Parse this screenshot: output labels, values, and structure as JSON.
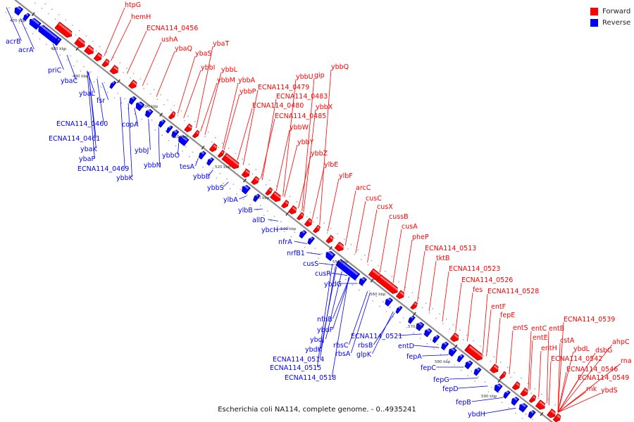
{
  "legend": [
    {
      "label": "Forward",
      "color": "#ff0000"
    },
    {
      "label": "Reverse",
      "color": "#0000ff"
    }
  ],
  "caption": "Escherichia coli NA114, complete genome. - 0..4935241",
  "colors": {
    "forward": "#ff0000",
    "reverse": "#0000ff",
    "axis": "#8c8c8c"
  },
  "ticks": [
    "470 kbp",
    "480 kbp",
    "490 kbp",
    "500 kbp",
    "510 kbp",
    "520 kbp",
    "530 kbp",
    "540 kbp",
    "550 kbp",
    "560 kbp",
    "570 kbp",
    "580 kbp",
    "590 kbp"
  ],
  "forward_labels": [
    "htpG",
    "hemH",
    "ECNA114_0456",
    "ushA",
    "ybaT",
    "ybaQ",
    "ybaS",
    "ybbI",
    "ybbL",
    "ybbM",
    "ybbA",
    "ybbP",
    "ECNA114_0479",
    "ybbU",
    "gip",
    "ybbQ",
    "ECNA114_0483",
    "ECNA114_0480",
    "ybbX",
    "ECNA114_0485",
    "ybbW",
    "ybbY",
    "ybbZ",
    "ylbE",
    "ylbF",
    "arcC",
    "cusC",
    "cusX",
    "cussB",
    "cusA",
    "pheP",
    "ECNA114_0513",
    "tktB",
    "ECNA114_0523",
    "ECNA114_0526",
    "fes",
    "ECNA114_0528",
    "entF",
    "fepE",
    "ECNA114_0539",
    "entS",
    "entC",
    "entB",
    "entE",
    "cstA",
    "entH",
    "ahpC",
    "ybdL",
    "dsbG",
    "ECNA114_0542",
    "rna",
    "ECNA114_0546",
    "ECNA114_0549",
    "rnk",
    "ybdS"
  ],
  "reverse_labels": [
    "acrB",
    "acrA",
    "priC",
    "ybaC",
    "ybaL",
    "fsr",
    "ECNA114_0460",
    "copA",
    "ECNA114_0461",
    "ybaK",
    "ybaP",
    "ECNA114_0469",
    "ybbJ",
    "ybbO",
    "ybbN",
    "ybbK",
    "tesA",
    "ybbB",
    "ybbS",
    "ylbA",
    "ylbB",
    "allD",
    "ybcH",
    "nfrA",
    "nrfB1",
    "cusS",
    "cusR",
    "ybdG",
    "nfnB",
    "ybdF",
    "ybdJ",
    "ybdK",
    "rbsC",
    "ECNA114_0521",
    "rbsB",
    "rbsA",
    "ECNA114_0514",
    "glpK",
    "ECNA114_0515",
    "ECNA114_0518",
    "entD",
    "fepA",
    "fepC",
    "fepG",
    "fepD",
    "fepB",
    "ybdH"
  ]
}
